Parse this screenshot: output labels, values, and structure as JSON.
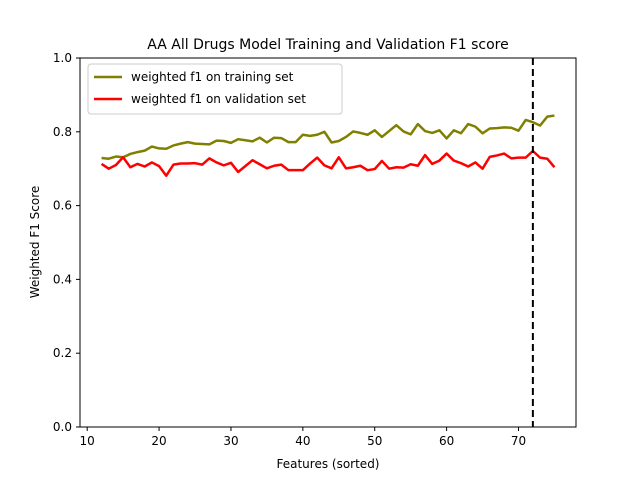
{
  "chart_data": {
    "type": "line",
    "title": "AA All Drugs Model Training and Validation F1 score",
    "xlabel": "Features (sorted)",
    "ylabel": "Weighted F1 Score",
    "xlim": [
      9,
      78
    ],
    "ylim": [
      0.0,
      1.0
    ],
    "xticks": [
      10,
      20,
      30,
      40,
      50,
      60,
      70
    ],
    "yticks": [
      0.0,
      0.2,
      0.4,
      0.6,
      0.8,
      1.0
    ],
    "ytick_labels": [
      "0.0",
      "0.2",
      "0.4",
      "0.6",
      "0.8",
      "1.0"
    ],
    "grid": false,
    "legend_position": "upper-left",
    "vline": {
      "x": 72,
      "style": "dashed",
      "color": "#000000"
    },
    "x": [
      12,
      13,
      14,
      15,
      16,
      17,
      18,
      19,
      20,
      21,
      22,
      23,
      24,
      25,
      26,
      27,
      28,
      29,
      30,
      31,
      32,
      33,
      34,
      35,
      36,
      37,
      38,
      39,
      40,
      41,
      42,
      43,
      44,
      45,
      46,
      47,
      48,
      49,
      50,
      51,
      52,
      53,
      54,
      55,
      56,
      57,
      58,
      59,
      60,
      61,
      62,
      63,
      64,
      65,
      66,
      67,
      68,
      69,
      70,
      71,
      72,
      73,
      74,
      75
    ],
    "series": [
      {
        "name": "weighted f1 on training set",
        "color": "#808000",
        "values": [
          0.729,
          0.727,
          0.733,
          0.731,
          0.74,
          0.745,
          0.749,
          0.76,
          0.755,
          0.754,
          0.763,
          0.768,
          0.772,
          0.768,
          0.767,
          0.766,
          0.776,
          0.775,
          0.77,
          0.78,
          0.777,
          0.774,
          0.784,
          0.771,
          0.784,
          0.783,
          0.772,
          0.772,
          0.792,
          0.789,
          0.792,
          0.8,
          0.771,
          0.775,
          0.786,
          0.801,
          0.797,
          0.792,
          0.804,
          0.786,
          0.802,
          0.818,
          0.801,
          0.793,
          0.821,
          0.802,
          0.797,
          0.804,
          0.782,
          0.804,
          0.796,
          0.821,
          0.814,
          0.796,
          0.809,
          0.81,
          0.812,
          0.811,
          0.803,
          0.832,
          0.826,
          0.817,
          0.841,
          0.844
        ]
      },
      {
        "name": "weighted f1 on validation set",
        "color": "#ff0000",
        "values": [
          0.713,
          0.7,
          0.71,
          0.731,
          0.704,
          0.713,
          0.706,
          0.717,
          0.707,
          0.681,
          0.711,
          0.714,
          0.714,
          0.715,
          0.711,
          0.728,
          0.717,
          0.709,
          0.716,
          0.691,
          0.707,
          0.723,
          0.712,
          0.701,
          0.708,
          0.711,
          0.696,
          0.696,
          0.696,
          0.714,
          0.73,
          0.709,
          0.701,
          0.731,
          0.701,
          0.704,
          0.708,
          0.696,
          0.699,
          0.721,
          0.7,
          0.704,
          0.703,
          0.712,
          0.708,
          0.737,
          0.713,
          0.722,
          0.741,
          0.722,
          0.715,
          0.706,
          0.717,
          0.7,
          0.732,
          0.736,
          0.741,
          0.728,
          0.73,
          0.73,
          0.748,
          0.73,
          0.727,
          0.704
        ]
      }
    ]
  }
}
